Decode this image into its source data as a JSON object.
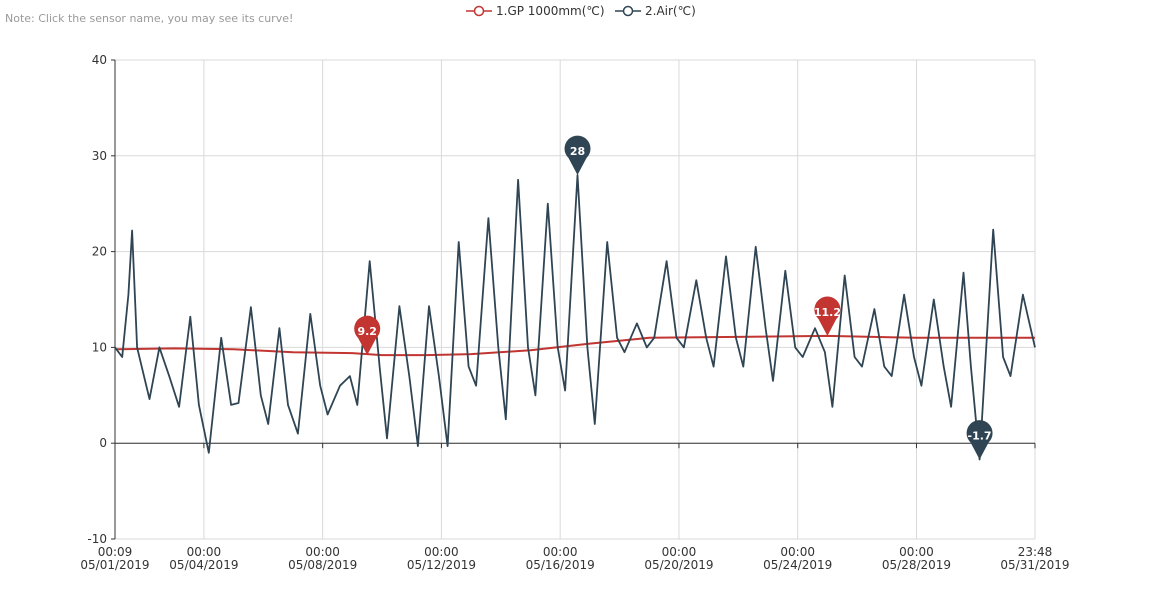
{
  "note": "Note: Click the sensor name, you may see its curve!",
  "colors": {
    "gp": "#c23531",
    "air": "#2f4554",
    "grid": "#d9d9d9",
    "axis": "#333333",
    "text": "#333333"
  },
  "chart_data": {
    "type": "line",
    "title": "",
    "xlabel": "",
    "ylabel": "",
    "ylim": [
      -10,
      40
    ],
    "yticks": [
      -10,
      0,
      10,
      20,
      30,
      40
    ],
    "grid": true,
    "legend_position": "top-center",
    "x_range": [
      "2019-05-01 00:09",
      "2019-05-31 23:48"
    ],
    "x_ticks": [
      {
        "t": "2019-05-01 00:09",
        "line1": "00:09",
        "line2": "05/01/2019"
      },
      {
        "t": "2019-05-04 00:00",
        "line1": "00:00",
        "line2": "05/04/2019"
      },
      {
        "t": "2019-05-08 00:00",
        "line1": "00:00",
        "line2": "05/08/2019"
      },
      {
        "t": "2019-05-12 00:00",
        "line1": "00:00",
        "line2": "05/12/2019"
      },
      {
        "t": "2019-05-16 00:00",
        "line1": "00:00",
        "line2": "05/16/2019"
      },
      {
        "t": "2019-05-20 00:00",
        "line1": "00:00",
        "line2": "05/20/2019"
      },
      {
        "t": "2019-05-24 00:00",
        "line1": "00:00",
        "line2": "05/24/2019"
      },
      {
        "t": "2019-05-28 00:00",
        "line1": "00:00",
        "line2": "05/28/2019"
      },
      {
        "t": "2019-05-31 23:48",
        "line1": "23:48",
        "line2": "05/31/2019"
      }
    ],
    "series": [
      {
        "name": "1.GP 1000mm(℃)",
        "color": "#c23531",
        "points": [
          [
            "2019-05-01 00:09",
            9.8
          ],
          [
            "2019-05-03 00:00",
            9.9
          ],
          [
            "2019-05-05 00:00",
            9.8
          ],
          [
            "2019-05-07 00:00",
            9.5
          ],
          [
            "2019-05-09 00:00",
            9.4
          ],
          [
            "2019-05-10 00:00",
            9.2
          ],
          [
            "2019-05-11 12:00",
            9.2
          ],
          [
            "2019-05-13 00:00",
            9.3
          ],
          [
            "2019-05-15 00:00",
            9.7
          ],
          [
            "2019-05-17 00:00",
            10.4
          ],
          [
            "2019-05-19 00:00",
            11.0
          ],
          [
            "2019-05-22 00:00",
            11.1
          ],
          [
            "2019-05-25 00:00",
            11.2
          ],
          [
            "2019-05-28 00:00",
            11.0
          ],
          [
            "2019-05-31 23:48",
            11.0
          ]
        ]
      },
      {
        "name": "2.Air(℃)",
        "color": "#2f4554",
        "points": [
          [
            "2019-05-01 00:09",
            10.0
          ],
          [
            "2019-05-01 06:00",
            9.0
          ],
          [
            "2019-05-01 11:00",
            15.5
          ],
          [
            "2019-05-01 14:00",
            22.2
          ],
          [
            "2019-05-01 18:00",
            10.0
          ],
          [
            "2019-05-02 04:00",
            4.6
          ],
          [
            "2019-05-02 12:00",
            10.0
          ],
          [
            "2019-05-02 20:00",
            7.0
          ],
          [
            "2019-05-03 04:00",
            3.8
          ],
          [
            "2019-05-03 13:00",
            13.2
          ],
          [
            "2019-05-03 20:00",
            4.0
          ],
          [
            "2019-05-04 04:00",
            -1.0
          ],
          [
            "2019-05-04 14:00",
            11.0
          ],
          [
            "2019-05-04 22:00",
            4.0
          ],
          [
            "2019-05-05 04:00",
            4.2
          ],
          [
            "2019-05-05 14:00",
            14.2
          ],
          [
            "2019-05-05 22:00",
            5.0
          ],
          [
            "2019-05-06 04:00",
            2.0
          ],
          [
            "2019-05-06 13:00",
            12.0
          ],
          [
            "2019-05-06 20:00",
            4.0
          ],
          [
            "2019-05-07 04:00",
            1.0
          ],
          [
            "2019-05-07 14:00",
            13.5
          ],
          [
            "2019-05-07 22:00",
            6.0
          ],
          [
            "2019-05-08 04:00",
            3.0
          ],
          [
            "2019-05-08 14:00",
            6.0
          ],
          [
            "2019-05-08 22:00",
            7.0
          ],
          [
            "2019-05-09 04:00",
            4.0
          ],
          [
            "2019-05-09 14:00",
            19.0
          ],
          [
            "2019-05-09 22:00",
            8.0
          ],
          [
            "2019-05-10 04:00",
            0.5
          ],
          [
            "2019-05-10 14:00",
            14.3
          ],
          [
            "2019-05-10 22:00",
            7.0
          ],
          [
            "2019-05-11 05:00",
            -0.3
          ],
          [
            "2019-05-11 14:00",
            14.3
          ],
          [
            "2019-05-11 22:00",
            7.0
          ],
          [
            "2019-05-12 05:00",
            -0.3
          ],
          [
            "2019-05-12 14:00",
            21.0
          ],
          [
            "2019-05-12 22:00",
            8.0
          ],
          [
            "2019-05-13 04:00",
            6.0
          ],
          [
            "2019-05-13 14:00",
            23.5
          ],
          [
            "2019-05-13 22:00",
            10.0
          ],
          [
            "2019-05-14 04:00",
            2.5
          ],
          [
            "2019-05-14 14:00",
            27.5
          ],
          [
            "2019-05-14 22:00",
            10.0
          ],
          [
            "2019-05-15 04:00",
            5.0
          ],
          [
            "2019-05-15 14:00",
            25.0
          ],
          [
            "2019-05-15 22:00",
            10.0
          ],
          [
            "2019-05-16 04:00",
            5.5
          ],
          [
            "2019-05-16 14:00",
            28.0
          ],
          [
            "2019-05-16 22:00",
            10.0
          ],
          [
            "2019-05-17 04:00",
            2.0
          ],
          [
            "2019-05-17 14:00",
            21.0
          ],
          [
            "2019-05-17 22:00",
            11.0
          ],
          [
            "2019-05-18 04:00",
            9.5
          ],
          [
            "2019-05-18 14:00",
            12.5
          ],
          [
            "2019-05-18 22:00",
            10.0
          ],
          [
            "2019-05-19 04:00",
            11.0
          ],
          [
            "2019-05-19 14:00",
            19.0
          ],
          [
            "2019-05-19 22:00",
            11.0
          ],
          [
            "2019-05-20 04:00",
            10.0
          ],
          [
            "2019-05-20 14:00",
            17.0
          ],
          [
            "2019-05-20 22:00",
            11.0
          ],
          [
            "2019-05-21 04:00",
            8.0
          ],
          [
            "2019-05-21 14:00",
            19.5
          ],
          [
            "2019-05-21 22:00",
            11.0
          ],
          [
            "2019-05-22 04:00",
            8.0
          ],
          [
            "2019-05-22 14:00",
            20.5
          ],
          [
            "2019-05-22 22:00",
            12.0
          ],
          [
            "2019-05-23 04:00",
            6.5
          ],
          [
            "2019-05-23 14:00",
            18.0
          ],
          [
            "2019-05-23 22:00",
            10.0
          ],
          [
            "2019-05-24 04:00",
            9.0
          ],
          [
            "2019-05-24 14:00",
            12.0
          ],
          [
            "2019-05-24 22:00",
            9.5
          ],
          [
            "2019-05-25 04:00",
            3.8
          ],
          [
            "2019-05-25 14:00",
            17.5
          ],
          [
            "2019-05-25 22:00",
            9.0
          ],
          [
            "2019-05-26 04:00",
            8.0
          ],
          [
            "2019-05-26 14:00",
            14.0
          ],
          [
            "2019-05-26 22:00",
            8.0
          ],
          [
            "2019-05-27 04:00",
            7.0
          ],
          [
            "2019-05-27 14:00",
            15.5
          ],
          [
            "2019-05-27 22:00",
            9.0
          ],
          [
            "2019-05-28 04:00",
            6.0
          ],
          [
            "2019-05-28 14:00",
            15.0
          ],
          [
            "2019-05-28 22:00",
            8.0
          ],
          [
            "2019-05-29 04:00",
            3.8
          ],
          [
            "2019-05-29 14:00",
            17.8
          ],
          [
            "2019-05-29 20:00",
            8.0
          ],
          [
            "2019-05-30 03:00",
            -1.7
          ],
          [
            "2019-05-30 14:00",
            22.3
          ],
          [
            "2019-05-30 22:00",
            9.0
          ],
          [
            "2019-05-31 04:00",
            7.0
          ],
          [
            "2019-05-31 14:00",
            15.5
          ],
          [
            "2019-05-31 23:48",
            10.0
          ]
        ]
      }
    ],
    "mark_points": [
      {
        "series": 0,
        "label": "9.2",
        "t": "2019-05-09 12:00",
        "y": 9.2
      },
      {
        "series": 0,
        "label": "11.2",
        "t": "2019-05-25 00:00",
        "y": 11.2
      },
      {
        "series": 1,
        "label": "28",
        "t": "2019-05-16 14:00",
        "y": 28.0
      },
      {
        "series": 1,
        "label": "-1.7",
        "t": "2019-05-30 03:00",
        "y": -1.7
      }
    ]
  }
}
